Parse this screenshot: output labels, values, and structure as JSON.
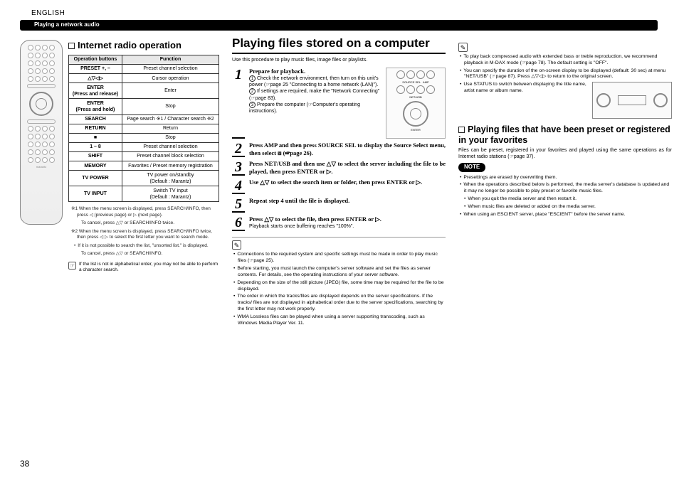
{
  "header": {
    "language": "ENGLISH",
    "strip_label": "Playing a network audio"
  },
  "col1": {
    "heading": "Internet radio operation",
    "table": {
      "headers": [
        "Operation buttons",
        "Function"
      ],
      "rows": [
        [
          "PRESET +, –",
          "Preset channel selection"
        ],
        [
          "△▽◁▷",
          "Cursor operation"
        ],
        [
          "ENTER\n(Press and release)",
          "Enter"
        ],
        [
          "ENTER\n(Press and hold)",
          "Stop"
        ],
        [
          "SEARCH",
          "Page search ※1 / Character search ※2"
        ],
        [
          "RETURN",
          "Return"
        ],
        [
          "■",
          "Stop"
        ],
        [
          "1 – 8",
          "Preset channel selection"
        ],
        [
          "SHIFT",
          "Preset channel block selection"
        ],
        [
          "MEMORY",
          "Favorites / Preset memory registration"
        ],
        [
          "TV POWER",
          "TV power on/standby\n(Default : Marantz)"
        ],
        [
          "TV INPUT",
          "Switch TV input\n(Default : Marantz)"
        ]
      ]
    },
    "fn1": "※1 When the menu screen is displayed, press SEARCH/INFO, then press ◁ (previous page) or ▷ (next page).",
    "fn1b": "To cancel, press △▽ or SEARCH/INFO twice.",
    "fn2": "※2 When the menu screen is displayed, press SEARCH/INFO twice, then press ◁ ▷ to select the first letter you want to search mode.",
    "fn2a": "If it is not possible to search the list, \"unsorted list.\" is displayed.",
    "fn2b": "To cancel, press △▽ or SEARCH/INFO.",
    "handnote": "If the list is not in alphabetical order, you may not be able to perform a character search."
  },
  "col2": {
    "title": "Playing files stored on a computer",
    "intro": "Use this procedure to play music files, image files or playlists.",
    "step1_head": "Prepare for playback.",
    "step1_a": "Check the network environment, then turn on this unit's power (☞page 25 \"Connecting to a home network (LAN)\").",
    "step1_b": "If settings are required, make the \"Network Connecting\" (☞page 83).",
    "step1_c": "Prepare the computer (☞Computer's operating instructions).",
    "step2": "Press AMP and then press SOURCE SEL to display the Source Select menu, then select ⧈ (☞page 26).",
    "step3": "Press NET/USB and then use △▽ to select the server including the file to be played, then press ENTER or ▷.",
    "step4": "Use △▽ to select the search item or folder, then press ENTER or ▷.",
    "step5": "Repeat step 4 until the file is displayed.",
    "step6": "Press △▽ to select the file, then press ENTER or ▷.",
    "step6_sub": "Playback starts once buffering reaches \"100%\".",
    "bul1": "Connections to the required system and specific settings must be made in order to play music files (☞page 25).",
    "bul2": "Before starting, you must launch the computer's server software and set the files as server contents. For details, see the operating instructions of your server software.",
    "bul3": "Depending on the size of the still picture (JPEG) file, some time may be required for the file to be displayed.",
    "bul4": "The order in which the tracks/files are displayed depends on the server specifications. If the tracks/ files are not displayed in alphabetical order due to the server specifications, searching by the first letter may not work properly.",
    "bul5": "WMA Lossless files can be played when using a server supporting transcoding, such as Windows Media Player Ver. 11."
  },
  "col3": {
    "bul_a": "To play back compressed audio with extended bass or treble reproduction, we recommend playback in M-DAX mode (☞page 78). The default setting is \"OFF\".",
    "bul_b": "You can specify the duration of the on-screen display to be displayed (default: 30 sec) at menu \"NET/USB\" (☞page 87). Press △▽◁▷ to return to the original screen.",
    "bul_c": "Use STATUS to switch between displaying the title name, artist name or album name.",
    "sub_heading": "Playing files that have been preset or registered in your favorites",
    "sub_text": "Files can be preset, registered in your favorites and played using the same operations as for Internet radio stations (☞page 37).",
    "note_label": "NOTE",
    "n1": "Presettings are erased by overwriting them.",
    "n2": "When the operations described below is performed, the media server's database is updated and it may no longer be possible to play preset or favorite music files.",
    "n2a": "When you quit the media server and then restart it.",
    "n2b": "When music files are deleted or added on the media server.",
    "n3": "When using an ESCIENT server, place \"ESCIENT\" before the server name."
  },
  "page_number": "38"
}
